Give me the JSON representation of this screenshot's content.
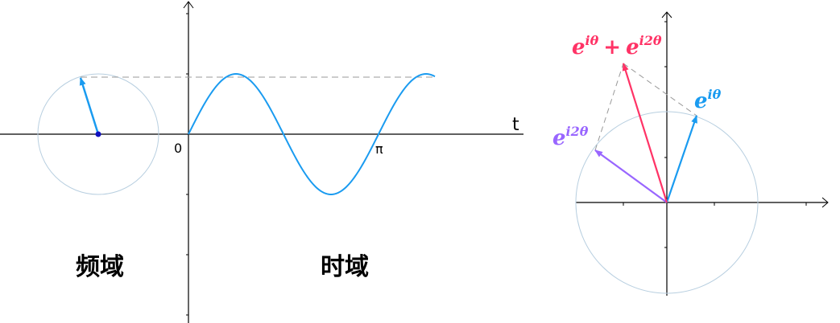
{
  "left": {
    "origin_label": "0",
    "pi_label": "π",
    "t_label": "t",
    "freq_domain_label": "频域",
    "time_domain_label": "时域",
    "wave_color": "#1a9bf0",
    "circle_color": "#b8cfe0"
  },
  "right": {
    "sum_label": {
      "base": "e",
      "exp": "iθ",
      "plus": "+",
      "base2": "e",
      "exp2": "i2θ"
    },
    "e1_label": {
      "base": "e",
      "exp": "iθ"
    },
    "e2_label": {
      "base": "e",
      "exp": "i2θ"
    },
    "colors": {
      "sum": "#ff3366",
      "e1": "#1a9bf0",
      "e2": "#9966ff"
    }
  }
}
